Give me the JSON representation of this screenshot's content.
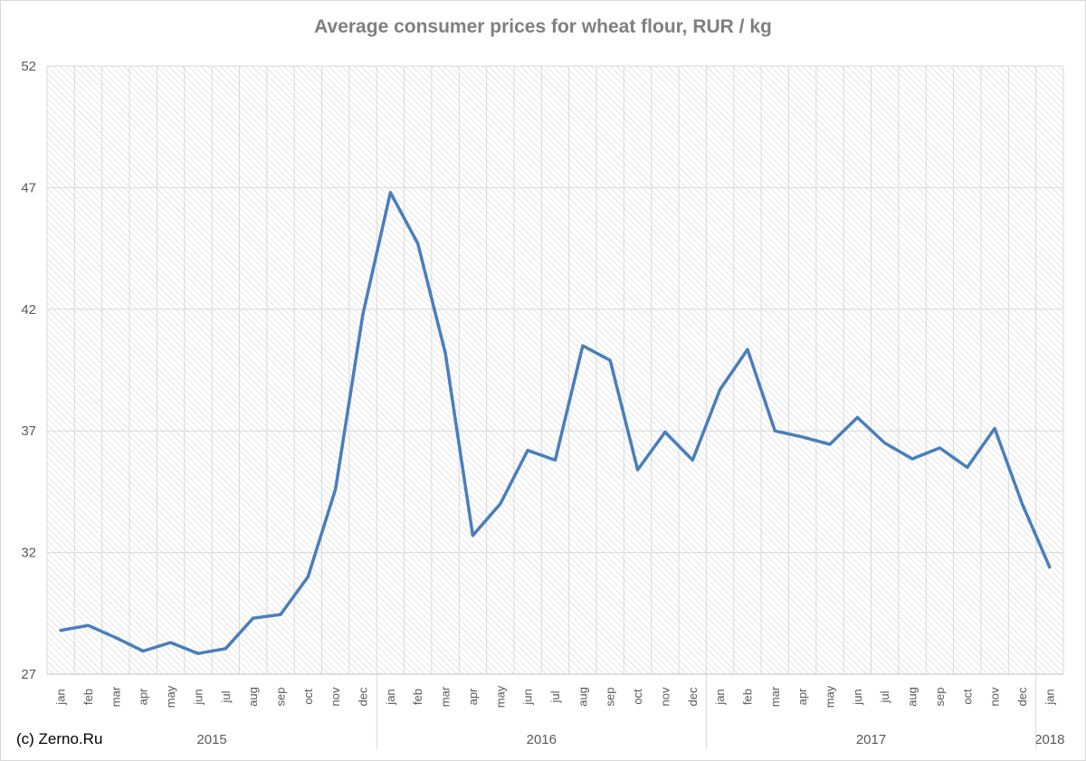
{
  "chart_data": {
    "type": "line",
    "title": "Average consumer prices for wheat flour, RUR / kg",
    "xlabel": "",
    "ylabel": "",
    "ylim": [
      27,
      52
    ],
    "yticks": [
      27,
      32,
      37,
      42,
      47,
      52
    ],
    "grid": true,
    "legend": "none",
    "x": [
      "jan",
      "feb",
      "mar",
      "apr",
      "may",
      "jun",
      "jul",
      "aug",
      "sep",
      "oct",
      "nov",
      "dec",
      "jan",
      "feb",
      "mar",
      "apr",
      "may",
      "jun",
      "jul",
      "aug",
      "sep",
      "oct",
      "nov",
      "dec",
      "jan",
      "feb",
      "mar",
      "apr",
      "may",
      "jun",
      "jul",
      "aug",
      "sep",
      "oct",
      "nov",
      "dec",
      "jan"
    ],
    "year_groups": [
      {
        "label": "2015",
        "count": 12
      },
      {
        "label": "2016",
        "count": 12
      },
      {
        "label": "2017",
        "count": 12
      },
      {
        "label": "2018",
        "count": 1
      }
    ],
    "series": [
      {
        "values": [
          28.8,
          29.0,
          28.5,
          27.95,
          28.3,
          27.85,
          28.05,
          29.3,
          29.45,
          31.0,
          34.6,
          41.8,
          46.8,
          44.7,
          40.2,
          32.7,
          34.0,
          36.2,
          35.8,
          40.5,
          39.9,
          35.4,
          36.95,
          35.8,
          38.7,
          40.35,
          37.0,
          36.75,
          36.45,
          37.55,
          36.5,
          35.85,
          36.3,
          35.5,
          37.1,
          34.0,
          31.4
        ],
        "color": "#4a7ebb"
      }
    ]
  },
  "credit": "(c) Zerno.Ru",
  "colors": {
    "line": "#4a7ebb",
    "grid": "#d9d9d9",
    "hatch": "#cdcdcd",
    "text": "#595959"
  }
}
